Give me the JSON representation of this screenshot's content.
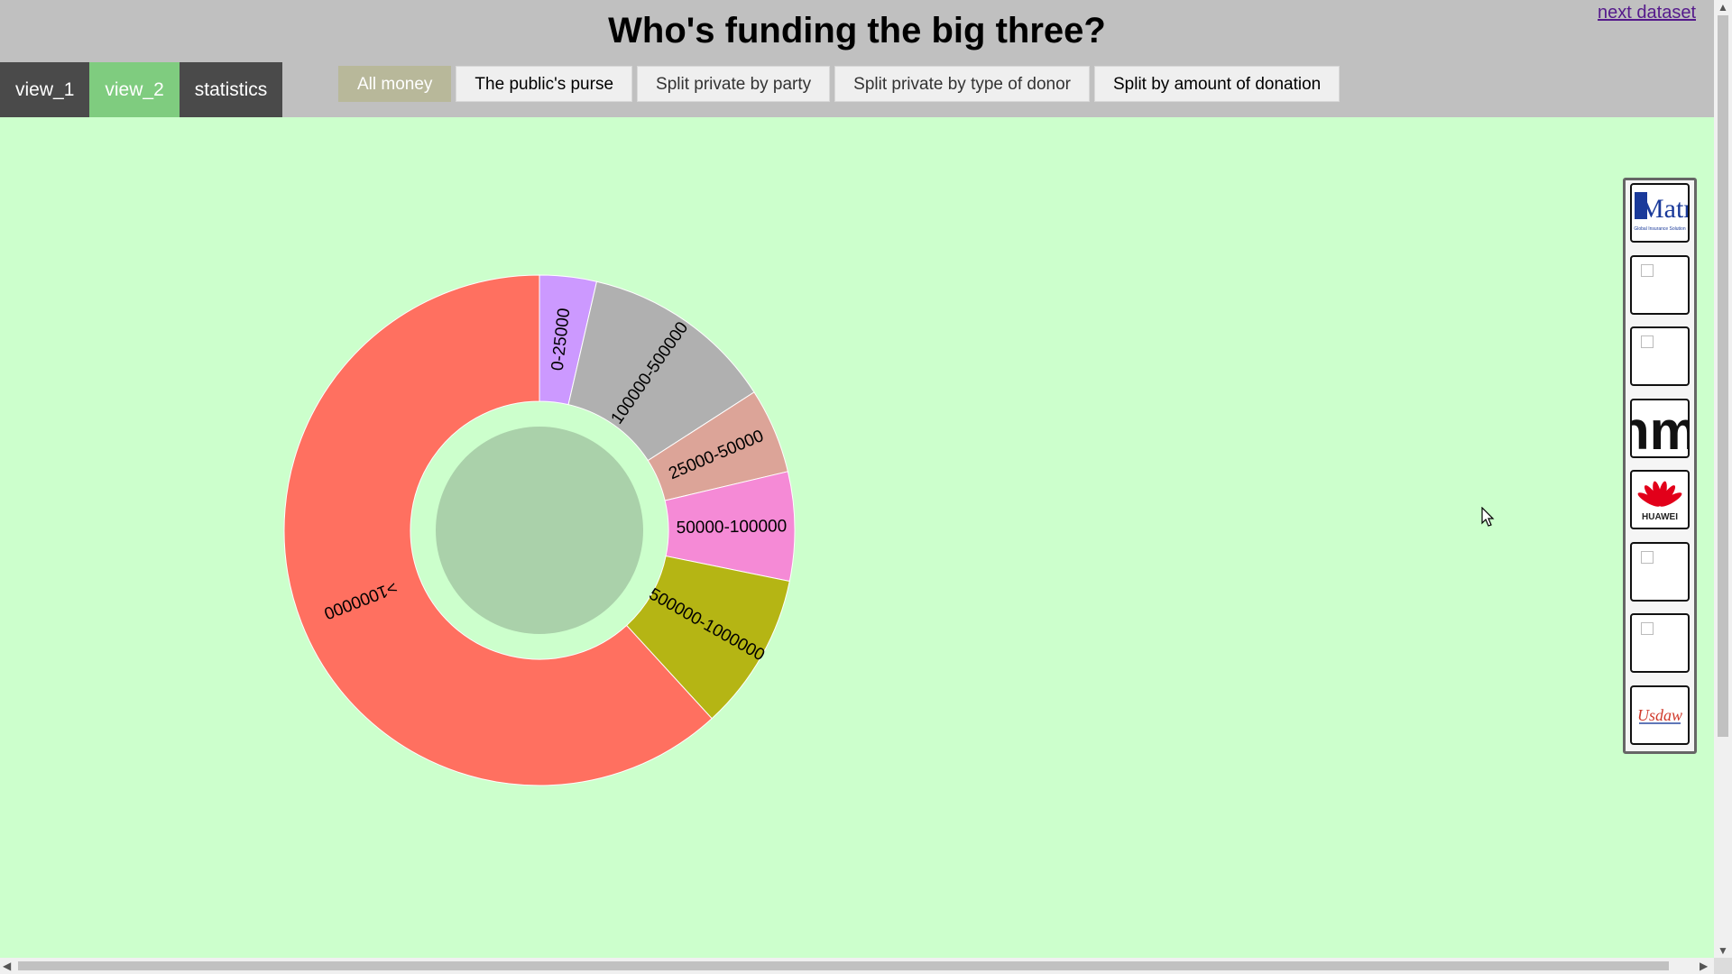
{
  "title": "Who's funding the big three?",
  "next_link": "next dataset",
  "views": [
    {
      "label": "view_1",
      "active": false
    },
    {
      "label": "view_2",
      "active": true
    },
    {
      "label": "statistics",
      "active": false
    }
  ],
  "buttons": [
    {
      "label": "All money",
      "active": true
    },
    {
      "label": "The public's purse",
      "active": false
    },
    {
      "label": "Split private by party",
      "active": false
    },
    {
      "label": "Split private by type of donor",
      "active": false
    },
    {
      "label": "Split by amount of donation",
      "active": false
    }
  ],
  "chart_data": {
    "type": "pie",
    "variant": "donut",
    "title": "",
    "categories": [
      "0-25000",
      "100000-500000",
      "25000-50000",
      "50000-100000",
      "500000-1000000",
      ">1000000"
    ],
    "values": [
      3.6,
      12.3,
      5.4,
      6.9,
      10.0,
      61.8
    ],
    "unit": "percent of total",
    "colors": [
      "#cc99ff",
      "#b0b0b0",
      "#dca498",
      "#f58ad6",
      "#b5b514",
      "#ff7060"
    ],
    "center_color": "#aad1aa",
    "start_angle_deg": 0,
    "direction": "clockwise"
  },
  "logo_panel": {
    "logos": [
      {
        "icon": "matrix-logo-icon",
        "label": "Matrix",
        "sub": "Global Insurance Solution",
        "broken": false
      },
      {
        "icon": "broken-image-icon",
        "broken": true
      },
      {
        "icon": "broken-image-icon",
        "broken": true
      },
      {
        "icon": "hm-logo-icon",
        "label": "hm",
        "broken": false
      },
      {
        "icon": "huawei-logo-icon",
        "label": "HUAWEI",
        "broken": false
      },
      {
        "icon": "broken-image-icon",
        "broken": true
      },
      {
        "icon": "broken-image-icon",
        "broken": true
      },
      {
        "icon": "usdaw-logo-icon",
        "label": "Usdaw",
        "broken": false
      }
    ]
  }
}
